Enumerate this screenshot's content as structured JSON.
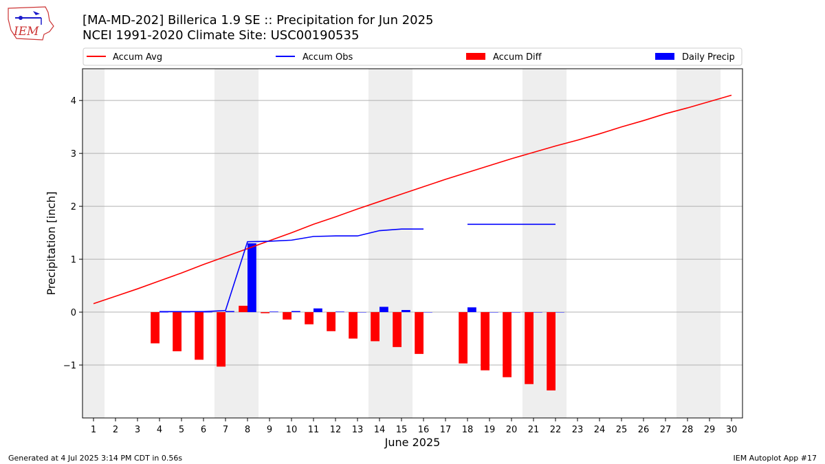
{
  "header": {
    "title_line1": "[MA-MD-202] Billerica 1.9 SE :: Precipitation for Jun 2025",
    "title_line2": "NCEI 1991-2020 Climate Site: USC00190535",
    "logo_text": "IEM"
  },
  "footer": {
    "left": "Generated at 4 Jul 2025 3:14 PM CDT in 0.56s",
    "right": "IEM Autoplot App #17"
  },
  "colors": {
    "avg": "#ff0000",
    "obs": "#0000ff",
    "diff": "#ff0000",
    "daily": "#0000ff",
    "weekend_shade": "#eeeeee",
    "grid": "#b0b0b0"
  },
  "chart_data": {
    "type": "bar",
    "xlabel": "June 2025",
    "ylabel": "Precipitation [inch]",
    "xlim": [
      0.5,
      30.5
    ],
    "ylim": [
      -2.0,
      4.6
    ],
    "yticks": [
      -1,
      0,
      1,
      2,
      3,
      4
    ],
    "ytick_labels": [
      "−1",
      "0",
      "1",
      "2",
      "3",
      "4"
    ],
    "grid": "horizontal",
    "legend_position": "top",
    "weekend_days": [
      1,
      7,
      8,
      14,
      15,
      21,
      22,
      28,
      29
    ],
    "days": [
      1,
      2,
      3,
      4,
      5,
      6,
      7,
      8,
      9,
      10,
      11,
      12,
      13,
      14,
      15,
      16,
      17,
      18,
      19,
      20,
      21,
      22,
      23,
      24,
      25,
      26,
      27,
      28,
      29,
      30
    ],
    "series": [
      {
        "name": "Accum Avg",
        "kind": "line",
        "values": [
          0.16,
          0.3,
          0.44,
          0.59,
          0.74,
          0.9,
          1.05,
          1.2,
          1.35,
          1.5,
          1.66,
          1.8,
          1.95,
          2.09,
          2.23,
          2.37,
          2.51,
          2.64,
          2.77,
          2.9,
          3.02,
          3.14,
          3.25,
          3.37,
          3.5,
          3.62,
          3.75,
          3.86,
          3.98,
          4.1
        ]
      },
      {
        "name": "Accum Obs",
        "kind": "line",
        "values": [
          null,
          null,
          null,
          0.01,
          0.01,
          0.01,
          0.03,
          1.33,
          1.34,
          1.36,
          1.43,
          1.44,
          1.44,
          1.54,
          1.57,
          1.57,
          null,
          1.66,
          1.66,
          1.66,
          1.66,
          1.66,
          null,
          null,
          null,
          null,
          null,
          null,
          null,
          null
        ]
      },
      {
        "name": "Accum Diff",
        "kind": "bar",
        "values": [
          null,
          null,
          null,
          -0.59,
          -0.74,
          -0.9,
          -1.03,
          0.12,
          -0.02,
          -0.14,
          -0.23,
          -0.36,
          -0.5,
          -0.55,
          -0.66,
          -0.79,
          null,
          -0.97,
          -1.1,
          -1.23,
          -1.36,
          -1.48,
          null,
          null,
          null,
          null,
          null,
          null,
          null,
          null
        ]
      },
      {
        "name": "Daily Precip",
        "kind": "bar",
        "values": [
          null,
          null,
          null,
          0.0,
          0.0,
          0.0,
          0.02,
          1.3,
          0.01,
          0.02,
          0.07,
          0.01,
          0.0,
          0.1,
          0.04,
          0.0,
          null,
          0.09,
          0.0,
          0.0,
          0.0,
          0.0,
          null,
          null,
          null,
          null,
          null,
          null,
          null,
          null
        ]
      }
    ]
  }
}
